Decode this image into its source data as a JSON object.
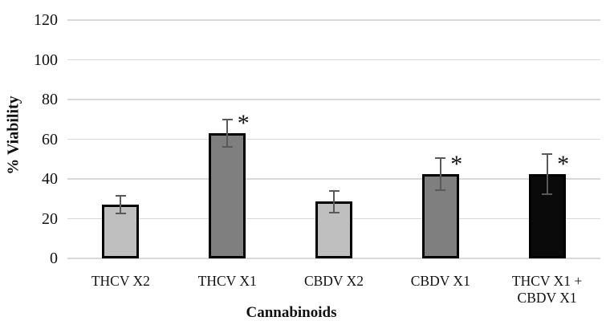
{
  "chart_data": {
    "type": "bar",
    "title": "",
    "xlabel": "Cannabinoids",
    "ylabel": "% Viability",
    "ylim": [
      0,
      120
    ],
    "yticks": [
      0,
      20,
      40,
      60,
      80,
      100,
      120
    ],
    "grid": true,
    "legend": "none",
    "categories": [
      "THCV X2",
      "THCV X1",
      "CBDV X2",
      "CBDV X1",
      "THCV X1 +\nCBDV X1"
    ],
    "values": [
      27,
      63,
      28.5,
      42.5,
      42.5
    ],
    "error_bars": [
      4.5,
      7,
      5.5,
      8,
      10
    ],
    "significance_marks": [
      false,
      true,
      false,
      true,
      true
    ],
    "significance_symbol": "*",
    "bar_fill_colors": [
      "#bfbfbf",
      "#7f7f7f",
      "#bfbfbf",
      "#7f7f7f",
      "#0a0a0a"
    ],
    "bar_border_color": "#000000",
    "error_bar_color": "#595959",
    "gridline_color": "#d9d9d9",
    "text_color": "#111111",
    "background_color": "#ffffff"
  }
}
